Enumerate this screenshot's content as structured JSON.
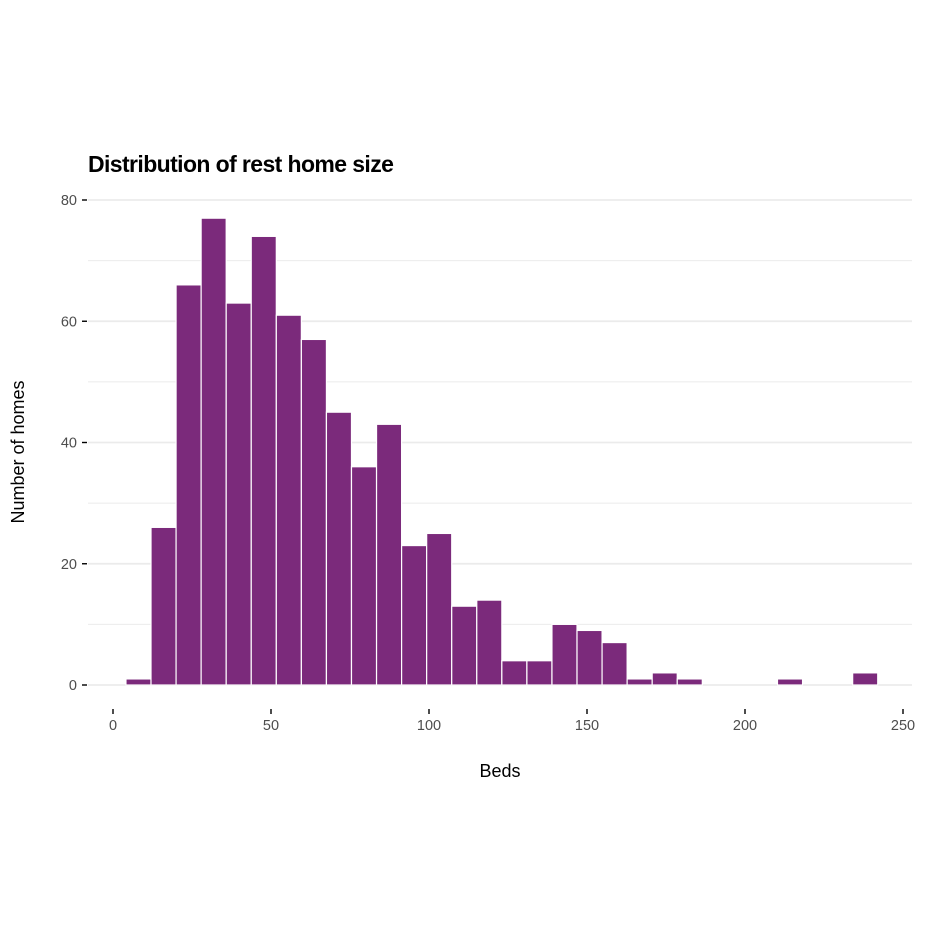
{
  "chart_data": {
    "type": "bar",
    "subtype": "histogram",
    "title": "Distribution of rest home size",
    "xlabel": "Beds",
    "ylabel": "Number of homes",
    "xlim": [
      -8,
      254
    ],
    "ylim": [
      -4,
      84
    ],
    "x_ticks": [
      0,
      50,
      100,
      150,
      200,
      250
    ],
    "x_tick_labels": [
      "0",
      "50",
      "100",
      "150",
      "200",
      "250"
    ],
    "y_ticks": [
      0,
      20,
      40,
      60,
      80
    ],
    "y_tick_labels": [
      "0",
      "20",
      "40",
      "60",
      "80"
    ],
    "y_minor_ticks": [
      10,
      30,
      50,
      70
    ],
    "grid": true,
    "bin_start": 4.1,
    "bin_width": 7.93,
    "values": [
      1,
      26,
      66,
      77,
      63,
      74,
      61,
      57,
      45,
      36,
      43,
      23,
      25,
      13,
      14,
      4,
      4,
      10,
      9,
      7,
      1,
      2,
      1,
      0,
      0,
      0,
      1,
      0,
      0,
      2
    ],
    "bar_color": "#7B2A7B",
    "bar_outline": "#ffffff",
    "grid_color": "#EBEBEB"
  }
}
